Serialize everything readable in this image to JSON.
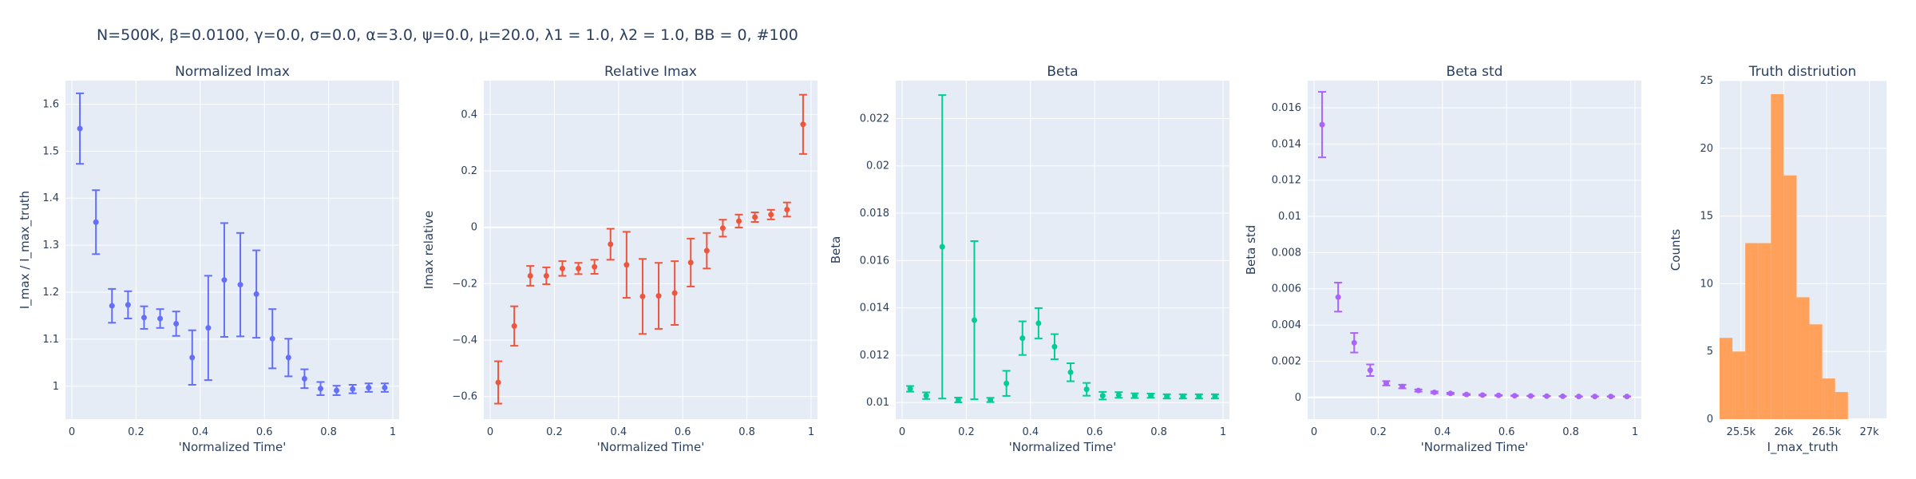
{
  "figure_title": "N=500K, β=0.0100, γ=0.0, σ=0.0,  α=3.0, ψ=0.0, μ=20.0, λ1 = 1.0, λ2 = 1.0, BB = 0, #100",
  "colors": {
    "plot_bg": "#e5ecf6",
    "grid": "#ffffff",
    "text": "#2a3f5f"
  },
  "chart_data": [
    {
      "type": "scatter",
      "title": "Normalized Imax",
      "xlabel": "'Normalized Time'",
      "ylabel": "I_max / I_max_truth",
      "color": "#636efa",
      "xlim": [
        -0.02,
        1.02
      ],
      "ylim": [
        0.93,
        1.65
      ],
      "xticks": [
        0,
        0.2,
        0.4,
        0.6,
        0.8,
        1
      ],
      "xtick_labels": [
        "0",
        "0.2",
        "0.4",
        "0.6",
        "0.8",
        "1"
      ],
      "yticks": [
        1,
        1.1,
        1.2,
        1.3,
        1.4,
        1.5,
        1.6
      ],
      "ytick_labels": [
        "1",
        "1.1",
        "1.2",
        "1.3",
        "1.4",
        "1.5",
        "1.6"
      ],
      "x": [
        0.025,
        0.075,
        0.125,
        0.175,
        0.225,
        0.275,
        0.325,
        0.375,
        0.425,
        0.475,
        0.525,
        0.575,
        0.625,
        0.675,
        0.725,
        0.775,
        0.825,
        0.875,
        0.925,
        0.975
      ],
      "y": [
        1.548,
        1.349,
        1.171,
        1.173,
        1.146,
        1.144,
        1.133,
        1.061,
        1.124,
        1.226,
        1.216,
        1.196,
        1.101,
        1.061,
        1.016,
        0.995,
        0.991,
        0.994,
        0.997,
        0.997
      ],
      "err": [
        0.075,
        0.068,
        0.036,
        0.029,
        0.024,
        0.02,
        0.026,
        0.058,
        0.111,
        0.121,
        0.11,
        0.093,
        0.063,
        0.04,
        0.02,
        0.014,
        0.01,
        0.009,
        0.009,
        0.009
      ]
    },
    {
      "type": "scatter",
      "title": "Relative Imax",
      "xlabel": "'Normalized Time'",
      "ylabel": "Imax relative",
      "color": "#ef553b",
      "xlim": [
        -0.02,
        1.02
      ],
      "ylim": [
        -0.68,
        0.52
      ],
      "xticks": [
        0,
        0.2,
        0.4,
        0.6,
        0.8,
        1
      ],
      "xtick_labels": [
        "0",
        "0.2",
        "0.4",
        "0.6",
        "0.8",
        "1"
      ],
      "yticks": [
        -0.6,
        -0.4,
        -0.2,
        0,
        0.2,
        0.4
      ],
      "ytick_labels": [
        "−0.6",
        "−0.4",
        "−0.2",
        "0",
        "0.2",
        "0.4"
      ],
      "x": [
        0.025,
        0.075,
        0.125,
        0.175,
        0.225,
        0.275,
        0.325,
        0.375,
        0.425,
        0.475,
        0.525,
        0.575,
        0.625,
        0.675,
        0.725,
        0.775,
        0.825,
        0.875,
        0.925,
        0.975
      ],
      "y": [
        -0.55,
        -0.35,
        -0.172,
        -0.172,
        -0.146,
        -0.146,
        -0.14,
        -0.06,
        -0.133,
        -0.245,
        -0.243,
        -0.233,
        -0.125,
        -0.083,
        -0.003,
        0.022,
        0.036,
        0.045,
        0.063,
        0.365
      ],
      "err": [
        0.075,
        0.07,
        0.035,
        0.03,
        0.026,
        0.02,
        0.025,
        0.055,
        0.117,
        0.133,
        0.117,
        0.113,
        0.085,
        0.063,
        0.03,
        0.023,
        0.017,
        0.017,
        0.025,
        0.105
      ]
    },
    {
      "type": "scatter",
      "title": "Beta",
      "xlabel": "'Normalized Time'",
      "ylabel": "Beta",
      "color": "#00cc96",
      "xlim": [
        -0.02,
        1.02
      ],
      "ylim": [
        0.0093,
        0.0236
      ],
      "xticks": [
        0,
        0.2,
        0.4,
        0.6,
        0.8,
        1
      ],
      "xtick_labels": [
        "0",
        "0.2",
        "0.4",
        "0.6",
        "0.8",
        "1"
      ],
      "yticks": [
        0.01,
        0.012,
        0.014,
        0.016,
        0.018,
        0.02,
        0.022
      ],
      "ytick_labels": [
        "0.01",
        "0.012",
        "0.014",
        "0.016",
        "0.018",
        "0.02",
        "0.022"
      ],
      "x": [
        0.025,
        0.075,
        0.125,
        0.175,
        0.225,
        0.275,
        0.325,
        0.375,
        0.425,
        0.475,
        0.525,
        0.575,
        0.625,
        0.675,
        0.725,
        0.775,
        0.825,
        0.875,
        0.925,
        0.975
      ],
      "y": [
        0.01058,
        0.01029,
        0.01658,
        0.01011,
        0.01348,
        0.01011,
        0.01081,
        0.01272,
        0.01335,
        0.01236,
        0.01128,
        0.01056,
        0.01029,
        0.01032,
        0.01029,
        0.01029,
        0.01026,
        0.01026,
        0.01026,
        0.01026
      ],
      "err": [
        0.00012,
        0.00014,
        0.00641,
        0.0001,
        0.00334,
        9e-05,
        0.00053,
        0.00071,
        0.00064,
        0.00053,
        0.00038,
        0.00027,
        0.00016,
        0.00012,
        0.0001,
        9e-05,
        9e-05,
        9e-05,
        9e-05,
        9e-05
      ]
    },
    {
      "type": "scatter",
      "title": "Beta std",
      "xlabel": "'Normalized Time'",
      "ylabel": "Beta std",
      "color": "#ab63fa",
      "xlim": [
        -0.02,
        1.02
      ],
      "ylim": [
        -0.0012,
        0.0175
      ],
      "xticks": [
        0,
        0.2,
        0.4,
        0.6,
        0.8,
        1
      ],
      "xtick_labels": [
        "0",
        "0.2",
        "0.4",
        "0.6",
        "0.8",
        "1"
      ],
      "yticks": [
        0,
        0.002,
        0.004,
        0.006,
        0.008,
        0.01,
        0.012,
        0.014,
        0.016
      ],
      "ytick_labels": [
        "0",
        "0.002",
        "0.004",
        "0.006",
        "0.008",
        "0.01",
        "0.012",
        "0.014",
        "0.016"
      ],
      "x": [
        0.025,
        0.075,
        0.125,
        0.175,
        0.225,
        0.275,
        0.325,
        0.375,
        0.425,
        0.475,
        0.525,
        0.575,
        0.625,
        0.675,
        0.725,
        0.775,
        0.825,
        0.875,
        0.925,
        0.975
      ],
      "y": [
        0.01507,
        0.00554,
        0.00302,
        0.0015,
        0.00078,
        0.0006,
        0.00038,
        0.00028,
        0.00022,
        0.00016,
        0.00013,
        0.00011,
        9e-05,
        8e-05,
        7e-05,
        6e-05,
        5e-05,
        5e-05,
        5e-05,
        5e-05
      ],
      "err": [
        0.00181,
        0.0008,
        0.00054,
        0.00032,
        0.00012,
        0.0001,
        6e-05,
        5e-05,
        4e-05,
        3e-05,
        2e-05,
        2e-05,
        2e-05,
        1e-05,
        1e-05,
        1e-05,
        1e-05,
        1e-05,
        1e-05,
        1e-05
      ]
    },
    {
      "type": "histogram",
      "title": "Truth distriution",
      "xlabel": "I_max_truth",
      "ylabel": "Counts",
      "color": "#ffa15a",
      "xlim": [
        25250,
        27200
      ],
      "ylim": [
        0,
        25
      ],
      "xticks": [
        25500,
        26000,
        26500,
        27000
      ],
      "xtick_labels": [
        "25.5k",
        "26k",
        "26.5k",
        "27k"
      ],
      "yticks": [
        0,
        5,
        10,
        15,
        20,
        25
      ],
      "ytick_labels": [
        "0",
        "5",
        "10",
        "15",
        "20",
        "25"
      ],
      "bin_start": 25250,
      "bin_width": 150,
      "counts": [
        6,
        5,
        13,
        13,
        24,
        18,
        9,
        7,
        3,
        2
      ]
    }
  ]
}
